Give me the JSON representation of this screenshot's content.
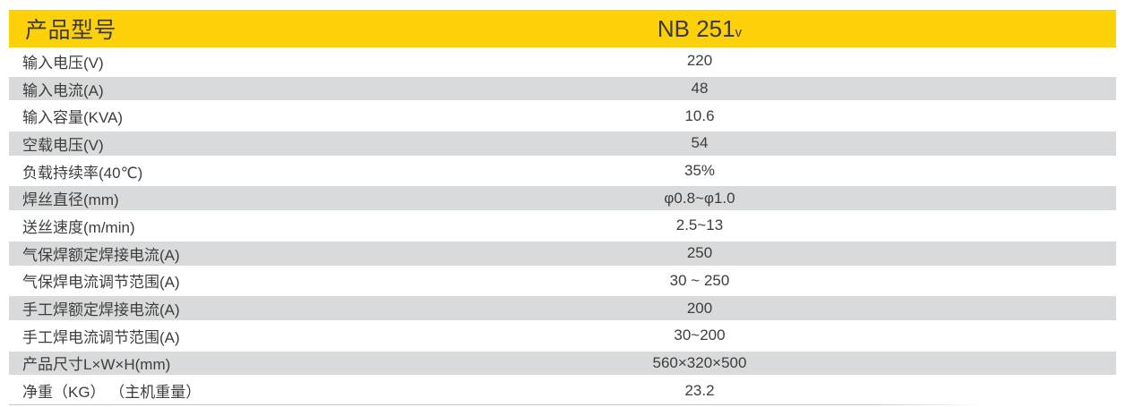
{
  "table": {
    "header": {
      "label": "产品型号",
      "model": "NB 251",
      "model_suffix": "v"
    },
    "rows": [
      {
        "label": "输入电压(V)",
        "value": "220"
      },
      {
        "label": "输入电流(A)",
        "value": "48"
      },
      {
        "label": "输入容量(KVA)",
        "value": "10.6"
      },
      {
        "label": "空载电压(V)",
        "value": "54"
      },
      {
        "label": "负载持续率(40℃)",
        "value": "35%"
      },
      {
        "label": "焊丝直径(mm)",
        "value": "φ0.8~φ1.0"
      },
      {
        "label": "送丝速度(m/min)",
        "value": "2.5~13"
      },
      {
        "label": "气保焊额定焊接电流(A)",
        "value": "250"
      },
      {
        "label": "气保焊电流调节范围(A)",
        "value": "30 ~ 250"
      },
      {
        "label": "手工焊额定焊接电流(A)",
        "value": "200"
      },
      {
        "label": "手工焊电流调节范围(A)",
        "value": "30~200"
      },
      {
        "label": "产品尺寸L×W×H(mm)",
        "value": "560×320×500"
      },
      {
        "label": "净重（KG） （主机重量）",
        "value": "23.2"
      }
    ],
    "colors": {
      "header_bg": "#FDD108",
      "row_alt_bg": "#D9DADB",
      "text": "#3D3D3D",
      "header_text": "#3A3A40",
      "bottom_line": "#C7C7C9"
    }
  }
}
